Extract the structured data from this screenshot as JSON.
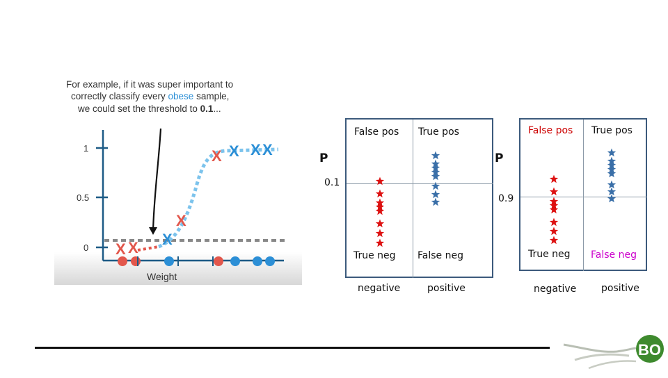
{
  "left_image": {
    "caption_line1": "For example, if it was super important to",
    "caption_line2_pre": "correctly classify every ",
    "caption_line2_highlight": "obese",
    "caption_line2_post": " sample,",
    "caption_line3_pre": "we could set the threshold to ",
    "caption_line3_value": "0.1",
    "caption_line3_post": "...",
    "y_ticks": [
      "1",
      "0.5",
      "0"
    ],
    "x_label": "Weight",
    "colors": {
      "red": "#e2574c",
      "blue": "#2c8fd6",
      "axis": "#1d5b86",
      "caption": "#333333",
      "highlight": "#2c8fd6"
    }
  },
  "matrix_left": {
    "p_label": "P",
    "threshold": "0.1",
    "cells": {
      "top_left": "False pos",
      "top_right": "True pos",
      "bottom_left": "True neg",
      "bottom_right": "False neg"
    },
    "columns": {
      "left": "negative",
      "right": "positive"
    }
  },
  "matrix_right": {
    "p_label": "P",
    "threshold": "0.9",
    "cells": {
      "top_left": "False pos",
      "top_right": "True pos",
      "bottom_left": "True neg",
      "bottom_right": "False neg"
    },
    "columns": {
      "left": "negative",
      "right": "positive"
    },
    "colors": {
      "top_left": "#cc0000",
      "bottom_right": "#cc00cc"
    }
  },
  "star_colors": {
    "red": "#dd1111",
    "blue": "#3a6fa8"
  },
  "logo": {
    "text": "BO"
  }
}
